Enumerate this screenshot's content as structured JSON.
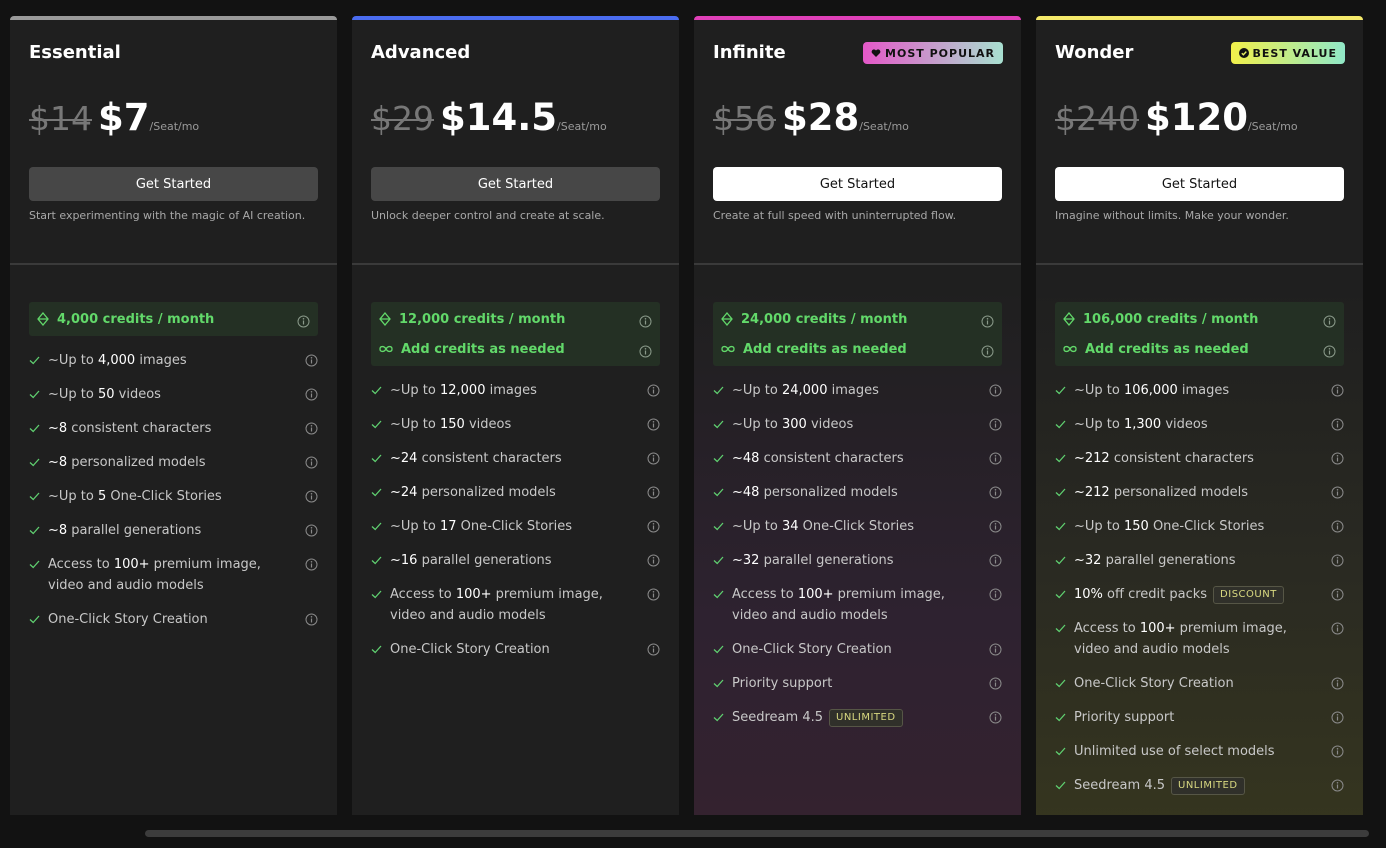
{
  "plans": [
    {
      "name": "Essential",
      "old_price": "$14",
      "price": "$7",
      "unit": "/Seat/mo",
      "button": "Get Started",
      "description": "Start experimenting with the magic of AI creation.",
      "credits": [
        "4,000 credits / month"
      ],
      "features": [
        {
          "parts": [
            {
              "t": "~Up to "
            },
            {
              "t": "4,000",
              "bold": true
            },
            {
              "t": " images"
            }
          ]
        },
        {
          "parts": [
            {
              "t": "~Up to "
            },
            {
              "t": "50",
              "bold": true
            },
            {
              "t": " videos"
            }
          ]
        },
        {
          "parts": [
            {
              "t": "~8",
              "bold": true
            },
            {
              "t": " consistent characters"
            }
          ]
        },
        {
          "parts": [
            {
              "t": "~8",
              "bold": true
            },
            {
              "t": " personalized models"
            }
          ]
        },
        {
          "parts": [
            {
              "t": "~Up to "
            },
            {
              "t": "5",
              "bold": true
            },
            {
              "t": " One-Click Stories"
            }
          ]
        },
        {
          "parts": [
            {
              "t": "~8",
              "bold": true
            },
            {
              "t": " parallel generations"
            }
          ]
        },
        {
          "parts": [
            {
              "t": "Access to "
            },
            {
              "t": "100+",
              "bold": true
            },
            {
              "t": " premium image, video and audio models"
            }
          ]
        },
        {
          "parts": [
            {
              "t": "One-Click Story Creation"
            }
          ]
        }
      ]
    },
    {
      "name": "Advanced",
      "old_price": "$29",
      "price": "$14.5",
      "unit": "/Seat/mo",
      "button": "Get Started",
      "description": "Unlock deeper control and create at scale.",
      "credits": [
        "12,000 credits / month",
        "Add credits as needed"
      ],
      "features": [
        {
          "parts": [
            {
              "t": "~Up to "
            },
            {
              "t": "12,000",
              "bold": true
            },
            {
              "t": " images"
            }
          ]
        },
        {
          "parts": [
            {
              "t": "~Up to "
            },
            {
              "t": "150",
              "bold": true
            },
            {
              "t": " videos"
            }
          ]
        },
        {
          "parts": [
            {
              "t": "~24",
              "bold": true
            },
            {
              "t": " consistent characters"
            }
          ]
        },
        {
          "parts": [
            {
              "t": "~24",
              "bold": true
            },
            {
              "t": " personalized models"
            }
          ]
        },
        {
          "parts": [
            {
              "t": "~Up to "
            },
            {
              "t": "17",
              "bold": true
            },
            {
              "t": " One-Click Stories"
            }
          ]
        },
        {
          "parts": [
            {
              "t": "~16",
              "bold": true
            },
            {
              "t": " parallel generations"
            }
          ]
        },
        {
          "parts": [
            {
              "t": "Access to "
            },
            {
              "t": "100+",
              "bold": true
            },
            {
              "t": " premium image, video and audio models"
            }
          ]
        },
        {
          "parts": [
            {
              "t": "One-Click Story Creation"
            }
          ]
        }
      ]
    },
    {
      "name": "Infinite",
      "badge": "MOST POPULAR",
      "old_price": "$56",
      "price": "$28",
      "unit": "/Seat/mo",
      "button": "Get Started",
      "description": "Create at full speed with uninterrupted flow.",
      "credits": [
        "24,000 credits / month",
        "Add credits as needed"
      ],
      "features": [
        {
          "parts": [
            {
              "t": "~Up to "
            },
            {
              "t": "24,000",
              "bold": true
            },
            {
              "t": " images"
            }
          ]
        },
        {
          "parts": [
            {
              "t": "~Up to "
            },
            {
              "t": "300",
              "bold": true
            },
            {
              "t": " videos"
            }
          ]
        },
        {
          "parts": [
            {
              "t": "~48",
              "bold": true
            },
            {
              "t": " consistent characters"
            }
          ]
        },
        {
          "parts": [
            {
              "t": "~48",
              "bold": true
            },
            {
              "t": " personalized models"
            }
          ]
        },
        {
          "parts": [
            {
              "t": "~Up to "
            },
            {
              "t": "34",
              "bold": true
            },
            {
              "t": " One-Click Stories"
            }
          ]
        },
        {
          "parts": [
            {
              "t": "~32",
              "bold": true
            },
            {
              "t": " parallel generations"
            }
          ]
        },
        {
          "parts": [
            {
              "t": "Access to "
            },
            {
              "t": "100+",
              "bold": true
            },
            {
              "t": " premium image, video and audio models"
            }
          ]
        },
        {
          "parts": [
            {
              "t": "One-Click Story Creation"
            }
          ]
        },
        {
          "parts": [
            {
              "t": "Priority support"
            }
          ]
        },
        {
          "parts": [
            {
              "t": "Seedream 4.5"
            }
          ],
          "tag": "UNLIMITED"
        }
      ]
    },
    {
      "name": "Wonder",
      "badge": "BEST VALUE",
      "old_price": "$240",
      "price": "$120",
      "unit": "/Seat/mo",
      "button": "Get Started",
      "description": "Imagine without limits. Make your wonder.",
      "credits": [
        "106,000 credits / month",
        "Add credits as needed"
      ],
      "features": [
        {
          "parts": [
            {
              "t": "~Up to "
            },
            {
              "t": "106,000",
              "bold": true
            },
            {
              "t": " images"
            }
          ]
        },
        {
          "parts": [
            {
              "t": "~Up to "
            },
            {
              "t": "1,300",
              "bold": true
            },
            {
              "t": " videos"
            }
          ]
        },
        {
          "parts": [
            {
              "t": "~212",
              "bold": true
            },
            {
              "t": " consistent characters"
            }
          ]
        },
        {
          "parts": [
            {
              "t": "~212",
              "bold": true
            },
            {
              "t": " personalized models"
            }
          ]
        },
        {
          "parts": [
            {
              "t": "~Up to "
            },
            {
              "t": "150",
              "bold": true
            },
            {
              "t": " One-Click Stories"
            }
          ]
        },
        {
          "parts": [
            {
              "t": "~32",
              "bold": true
            },
            {
              "t": " parallel generations"
            }
          ]
        },
        {
          "parts": [
            {
              "t": "10%",
              "bold": true
            },
            {
              "t": " off credit packs"
            }
          ],
          "tag": "DISCOUNT"
        },
        {
          "parts": [
            {
              "t": "Access to "
            },
            {
              "t": "100+",
              "bold": true
            },
            {
              "t": " premium image, video and audio models"
            }
          ]
        },
        {
          "parts": [
            {
              "t": "One-Click Story Creation"
            }
          ]
        },
        {
          "parts": [
            {
              "t": "Priority support"
            }
          ]
        },
        {
          "parts": [
            {
              "t": "Unlimited use of select models"
            }
          ]
        },
        {
          "parts": [
            {
              "t": "Seedream 4.5"
            }
          ],
          "tag": "UNLIMITED"
        }
      ]
    }
  ]
}
